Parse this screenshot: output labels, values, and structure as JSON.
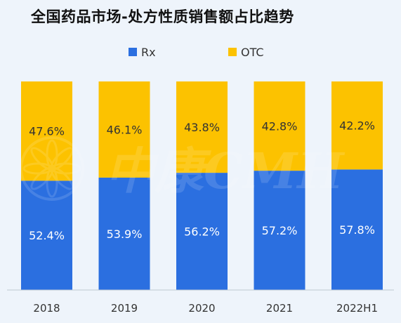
{
  "chart_data": {
    "type": "bar",
    "stacked": true,
    "title": "全国药品市场-处方性质销售额占比趋势",
    "categories": [
      "2018",
      "2019",
      "2020",
      "2021",
      "2022H1"
    ],
    "series": [
      {
        "name": "Rx",
        "values": [
          52.4,
          53.9,
          56.2,
          57.2,
          57.8
        ],
        "color": "#2b6fe0",
        "labels": [
          "52.4%",
          "53.9%",
          "56.2%",
          "57.2%",
          "57.8%"
        ]
      },
      {
        "name": "OTC",
        "values": [
          47.6,
          46.1,
          43.8,
          42.8,
          42.2
        ],
        "color": "#fcc200",
        "labels": [
          "47.6%",
          "46.1%",
          "43.8%",
          "42.8%",
          "42.2%"
        ]
      }
    ],
    "ylim": [
      0,
      100
    ],
    "legend": "top-center",
    "grid": false
  },
  "watermark": "中康CMH"
}
